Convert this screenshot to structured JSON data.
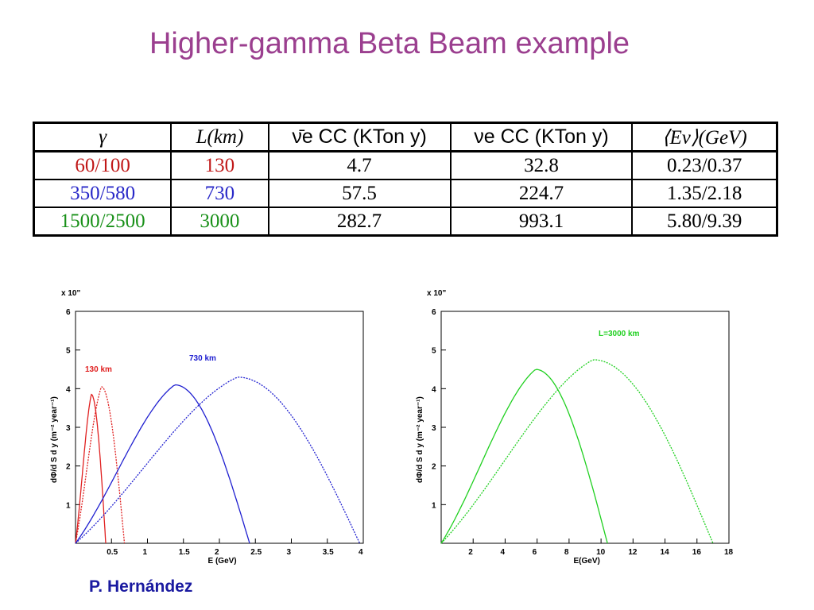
{
  "title": "Higher-gamma Beta Beam example",
  "table": {
    "headers": [
      "γ",
      "L(km)",
      "ν̄e CC (KTon y)",
      "νe CC (KTon y)",
      "⟨Eν⟩(GeV)"
    ],
    "rows": [
      {
        "gamma": "60/100",
        "L": "130",
        "nubar_cc": "4.7",
        "nu_cc": "32.8",
        "e_mean": "0.23/0.37",
        "color": "#c01818"
      },
      {
        "gamma": "350/580",
        "L": "730",
        "nubar_cc": "57.5",
        "nu_cc": "224.7",
        "e_mean": "1.35/2.18",
        "color": "#2828c8"
      },
      {
        "gamma": "1500/2500",
        "L": "3000",
        "nubar_cc": "282.7",
        "nu_cc": "993.1",
        "e_mean": "5.80/9.39",
        "color": "#189018"
      }
    ]
  },
  "footer": "P. Hernández",
  "chart_data": [
    {
      "type": "line",
      "title": "",
      "exponent_label": "x 10\"",
      "xlabel": "E (GeV)",
      "ylabel": "dΦ/d S d y (m⁻² year⁻¹)",
      "xlim": [
        0,
        4
      ],
      "ylim": [
        0,
        6
      ],
      "xticks": [
        0.5,
        1,
        1.5,
        2,
        2.5,
        3,
        3.5,
        4
      ],
      "xtick_labels": [
        "0.5",
        "1",
        "1.5",
        "2",
        "2.5",
        "3",
        "3.5",
        "4"
      ],
      "yticks": [
        1,
        2,
        3,
        4,
        5,
        6
      ],
      "ytick_labels": [
        "1",
        "2",
        "3",
        "4",
        "5",
        "6"
      ],
      "annotations": [
        {
          "text": "130 km",
          "color": "#e02020"
        },
        {
          "text": "730 km",
          "color": "#2020d0"
        }
      ],
      "series": [
        {
          "color": "#e02020",
          "style": "solid",
          "end": 0.42,
          "peak_x": 0.22,
          "peak_y": 3.85
        },
        {
          "color": "#e02020",
          "style": "dashed",
          "end": 0.68,
          "peak_x": 0.36,
          "peak_y": 4.05
        },
        {
          "color": "#2020d0",
          "style": "solid",
          "end": 2.42,
          "peak_x": 1.38,
          "peak_y": 4.1
        },
        {
          "color": "#2020d0",
          "style": "dashed",
          "end": 3.95,
          "peak_x": 2.25,
          "peak_y": 4.3
        }
      ]
    },
    {
      "type": "line",
      "title": "",
      "exponent_label": "x 10\"",
      "xlabel": "E(GeV)",
      "ylabel": "dΦ/d S d y (m⁻² year⁻¹)",
      "xlim": [
        0,
        18
      ],
      "ylim": [
        0,
        6
      ],
      "xticks": [
        2,
        4,
        6,
        8,
        10,
        12,
        14,
        16,
        18
      ],
      "xtick_labels": [
        "2",
        "4",
        "6",
        "8",
        "10",
        "12",
        "14",
        "16",
        "18"
      ],
      "yticks": [
        1,
        2,
        3,
        4,
        5,
        6
      ],
      "ytick_labels": [
        "1",
        "2",
        "3",
        "4",
        "5",
        "6"
      ],
      "annotations": [
        {
          "text": "L=3000 km",
          "color": "#20d020"
        }
      ],
      "series": [
        {
          "color": "#20d020",
          "style": "solid",
          "end": 10.4,
          "peak_x": 5.9,
          "peak_y": 4.5
        },
        {
          "color": "#20d020",
          "style": "dashed",
          "end": 17.0,
          "peak_x": 9.5,
          "peak_y": 4.75
        }
      ]
    }
  ]
}
